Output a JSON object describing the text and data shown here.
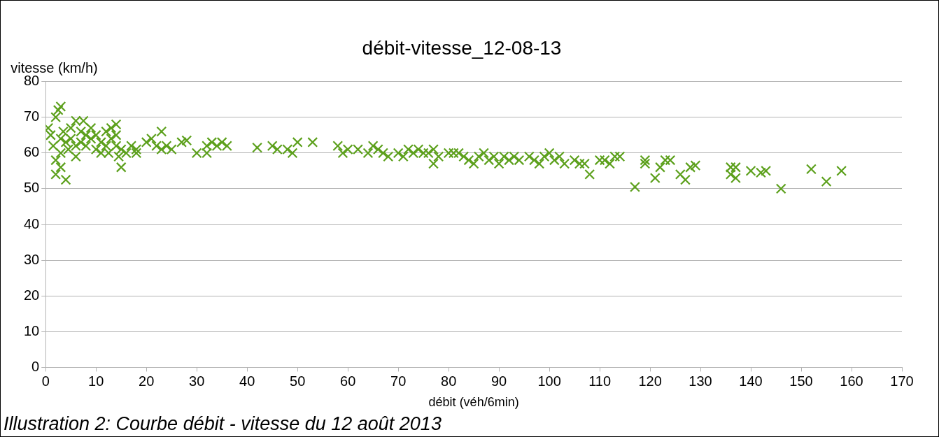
{
  "chart_data": {
    "type": "scatter",
    "title": "débit-vitesse_12-08-13",
    "xlabel": "débit (véh/6min)",
    "ylabel": "vitesse (km/h)",
    "annotations": [
      "Illustration 2: Courbe débit - vitesse du 12 août 2013"
    ],
    "x": [
      0.5,
      1,
      1.5,
      2,
      2,
      2,
      2.5,
      3,
      3,
      3,
      3,
      3.5,
      4,
      4,
      4.5,
      5,
      5,
      6,
      6,
      6,
      7,
      7,
      7.5,
      8,
      8,
      9,
      9,
      10,
      10,
      11,
      11,
      12,
      12,
      12.5,
      13,
      13,
      14,
      14,
      14,
      14.5,
      15,
      15,
      16,
      17,
      18,
      18,
      20,
      21,
      22,
      23,
      23,
      24,
      25,
      27,
      28,
      30,
      32,
      32,
      33,
      34,
      35,
      36,
      42,
      45,
      46,
      48,
      49,
      50,
      53,
      58,
      59,
      60,
      62,
      64,
      65,
      66,
      67,
      68,
      70,
      71,
      72,
      73,
      74,
      75,
      76,
      77,
      77,
      78,
      80,
      81,
      82,
      83,
      84,
      85,
      86,
      87,
      88,
      89,
      90,
      91,
      92,
      93,
      94,
      96,
      97,
      98,
      99,
      100,
      101,
      102,
      103,
      105,
      106,
      107,
      108,
      110,
      111,
      112,
      113,
      114,
      117,
      119,
      119,
      121,
      122,
      123,
      124,
      126,
      127,
      128,
      129,
      136,
      136,
      137,
      137,
      140,
      142,
      143,
      146,
      152,
      155,
      158
    ],
    "series": [
      {
        "color": "#5ca01c",
        "values": [
          67,
          65,
          62,
          70,
          58,
          54,
          72,
          73,
          64,
          60,
          56,
          66,
          52.5,
          63,
          61,
          67,
          64,
          69,
          59,
          62,
          66,
          63,
          69,
          65,
          62,
          67,
          64,
          61,
          65,
          63,
          60,
          66,
          62,
          60,
          64,
          67,
          68,
          65,
          62,
          59,
          56,
          61,
          60,
          62,
          61,
          60,
          63,
          64,
          62,
          66,
          61,
          62,
          61,
          63,
          63.5,
          60,
          60,
          62,
          63,
          62,
          63,
          62,
          61.5,
          62,
          61,
          61,
          60,
          63,
          63,
          62,
          60,
          61,
          61,
          60,
          62,
          61,
          60,
          59,
          60,
          59,
          61,
          60,
          61,
          60,
          60,
          57,
          61,
          59,
          60,
          60,
          60,
          59,
          58,
          57,
          59,
          60,
          58,
          59,
          57,
          59,
          58,
          59,
          58,
          59,
          58,
          57,
          59,
          60,
          58,
          59,
          57,
          58,
          57,
          57,
          54,
          58,
          58,
          57,
          59,
          59,
          50.5,
          58,
          57,
          53,
          56,
          58,
          58,
          54,
          52.5,
          56,
          56.5,
          56,
          54,
          53,
          56,
          55,
          54.5,
          55,
          50,
          55.5,
          52,
          55
        ]
      }
    ],
    "xlim": [
      0,
      170
    ],
    "xticks": [
      0,
      10,
      20,
      30,
      40,
      50,
      60,
      70,
      80,
      90,
      100,
      110,
      120,
      130,
      140,
      150,
      160,
      170
    ],
    "ylim": [
      0,
      80
    ],
    "yticks": [
      0,
      10,
      20,
      30,
      40,
      50,
      60,
      70,
      80
    ],
    "grid": "y",
    "legend": false,
    "marker": "cross"
  }
}
